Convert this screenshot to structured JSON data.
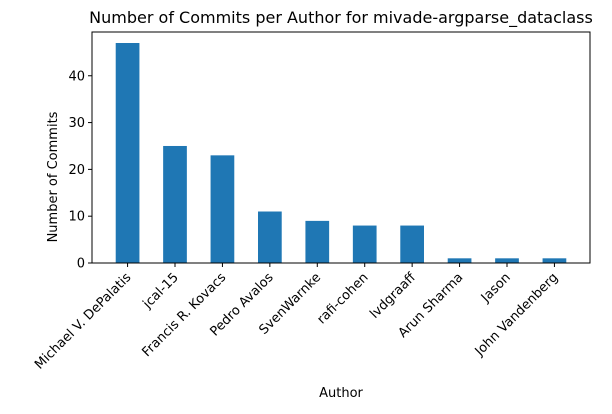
{
  "chart_data": {
    "type": "bar",
    "title": "Number of Commits per Author for mivade-argparse_dataclass",
    "xlabel": "Author",
    "ylabel": "Number of Commits",
    "categories": [
      "Michael V. DePalatis",
      "jcal-15",
      "Francis R. Kovacs",
      "Pedro Avalos",
      "SvenWarnke",
      "rafi-cohen",
      "lvdgraaff",
      "Arun Sharma",
      "Jason",
      "John Vandenberg"
    ],
    "values": [
      47,
      25,
      23,
      11,
      9,
      8,
      8,
      1,
      1,
      1
    ],
    "ylim": [
      0,
      49.35
    ],
    "yticks": [
      0,
      10,
      20,
      30,
      40
    ],
    "grid": false,
    "legend": "none",
    "bar_color": "#1f77b4"
  }
}
